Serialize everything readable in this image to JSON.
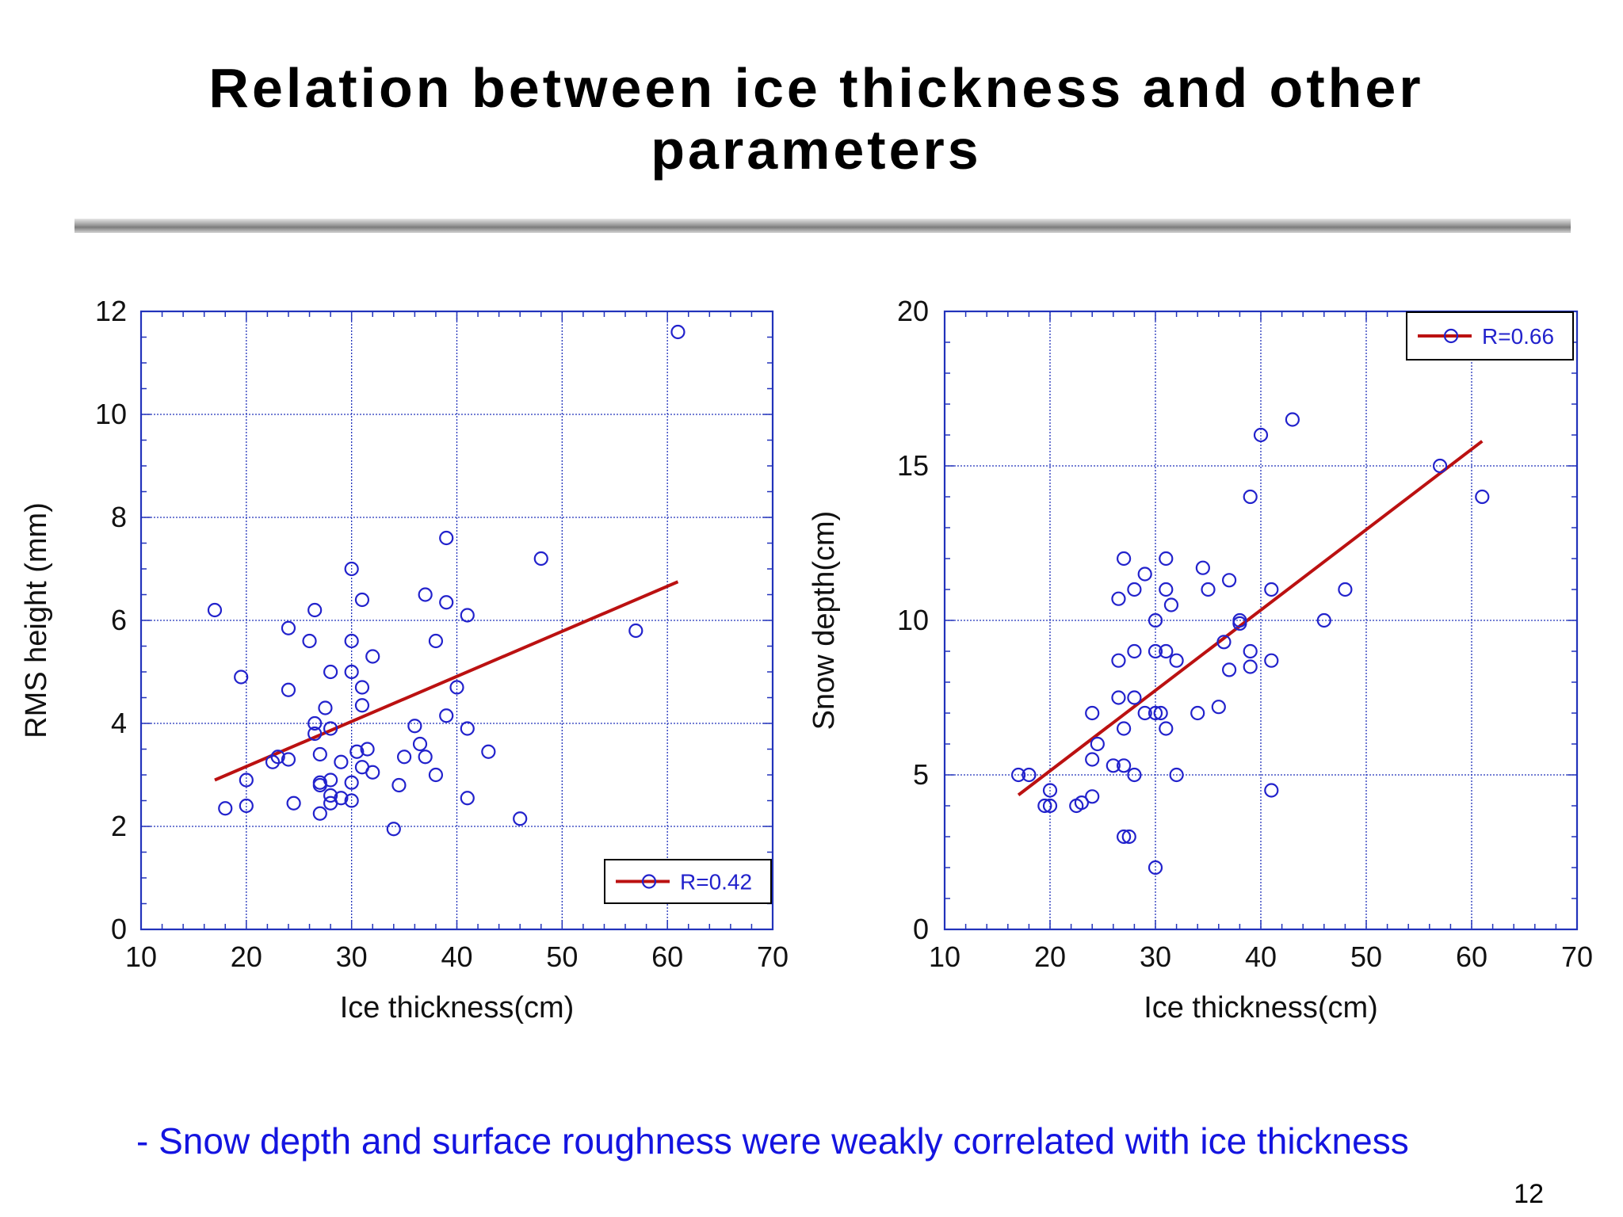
{
  "slide": {
    "title_line1": "Relation between ice thickness and other",
    "title_line2": "parameters",
    "footer_note": "- Snow depth and surface roughness were weakly correlated with ice thickness",
    "page_number": "12"
  },
  "colors": {
    "marker": "#2222cc",
    "fit_line": "#bb1111",
    "grid": "#2233bb",
    "axis_text": "#111111",
    "footer_text": "#1414e0"
  },
  "chart_data": [
    {
      "type": "scatter",
      "title": "",
      "xlabel": "Ice thickness(cm)",
      "ylabel": "RMS height (mm)",
      "xlim": [
        10,
        70
      ],
      "ylim": [
        0,
        12
      ],
      "xticks": [
        10,
        20,
        30,
        40,
        50,
        60,
        70
      ],
      "yticks": [
        0,
        2,
        4,
        6,
        8,
        10,
        12
      ],
      "grid": true,
      "legend": {
        "label": "R=0.42",
        "placement": "bottom-right"
      },
      "fit_line": {
        "x": [
          17,
          61
        ],
        "y": [
          2.9,
          6.75
        ]
      },
      "series": [
        {
          "name": "R=0.42",
          "x": [
            17,
            18,
            19.5,
            20,
            20,
            22.5,
            23,
            24,
            24,
            24,
            24.5,
            26,
            26.5,
            26.5,
            26.5,
            27,
            27,
            27,
            27,
            27.5,
            28,
            28,
            28,
            28,
            28,
            29,
            29,
            30,
            30,
            30,
            30,
            30,
            30.5,
            31,
            31,
            31,
            31,
            31.5,
            32,
            32,
            34,
            34.5,
            35,
            36,
            36.5,
            37,
            37,
            38,
            38,
            39,
            39,
            39,
            40,
            41,
            41,
            41,
            43,
            46,
            48,
            57,
            61
          ],
          "y": [
            6.2,
            2.35,
            4.9,
            2.9,
            2.4,
            3.25,
            3.35,
            5.85,
            4.65,
            3.3,
            2.45,
            5.6,
            6.2,
            4.0,
            3.8,
            3.4,
            2.85,
            2.8,
            2.25,
            4.3,
            5.0,
            3.9,
            2.9,
            2.6,
            2.45,
            3.25,
            2.55,
            7.0,
            5.6,
            5.0,
            2.85,
            2.5,
            3.45,
            6.4,
            4.7,
            4.35,
            3.15,
            3.5,
            5.3,
            3.05,
            1.95,
            2.8,
            3.35,
            3.95,
            3.6,
            6.5,
            3.35,
            5.6,
            3.0,
            7.6,
            6.35,
            4.15,
            4.7,
            6.1,
            3.9,
            2.55,
            3.45,
            2.15,
            7.2,
            5.8,
            11.6
          ]
        }
      ]
    },
    {
      "type": "scatter",
      "title": "",
      "xlabel": "Ice thickness(cm)",
      "ylabel": "Snow depth(cm)",
      "xlim": [
        10,
        70
      ],
      "ylim": [
        0,
        20
      ],
      "xticks": [
        10,
        20,
        30,
        40,
        50,
        60,
        70
      ],
      "yticks": [
        0,
        5,
        10,
        15,
        20
      ],
      "grid": true,
      "legend": {
        "label": "R=0.66",
        "placement": "top-right"
      },
      "fit_line": {
        "x": [
          17,
          61
        ],
        "y": [
          4.35,
          15.8
        ]
      },
      "series": [
        {
          "name": "R=0.66",
          "x": [
            17,
            18,
            19.5,
            20,
            20,
            22.5,
            23,
            24,
            24,
            24,
            24.5,
            26,
            26.5,
            26.5,
            26.5,
            27,
            27,
            27,
            27,
            27.5,
            28,
            28,
            28,
            28,
            29,
            29,
            30,
            30,
            30,
            30,
            30.5,
            31,
            31,
            31,
            31,
            31.5,
            32,
            32,
            34,
            34.5,
            35,
            36,
            36.5,
            37,
            37,
            38,
            38,
            39,
            39,
            39,
            40,
            41,
            41,
            41,
            43,
            46,
            48,
            57,
            61
          ],
          "y": [
            5,
            5,
            4,
            4.5,
            4,
            4,
            4.1,
            7,
            5.5,
            4.3,
            6,
            5.3,
            10.7,
            8.7,
            7.5,
            12,
            6.5,
            5.3,
            3,
            3,
            11,
            9,
            7.5,
            5,
            11.5,
            7,
            10,
            9,
            7,
            2,
            7,
            12,
            11,
            9,
            6.5,
            10.5,
            8.7,
            5,
            7,
            11.7,
            11,
            7.2,
            9.3,
            11.3,
            8.4,
            10,
            9.9,
            14,
            9,
            8.5,
            16,
            11,
            8.7,
            4.5,
            16.5,
            10,
            11,
            15,
            14
          ]
        }
      ]
    }
  ]
}
